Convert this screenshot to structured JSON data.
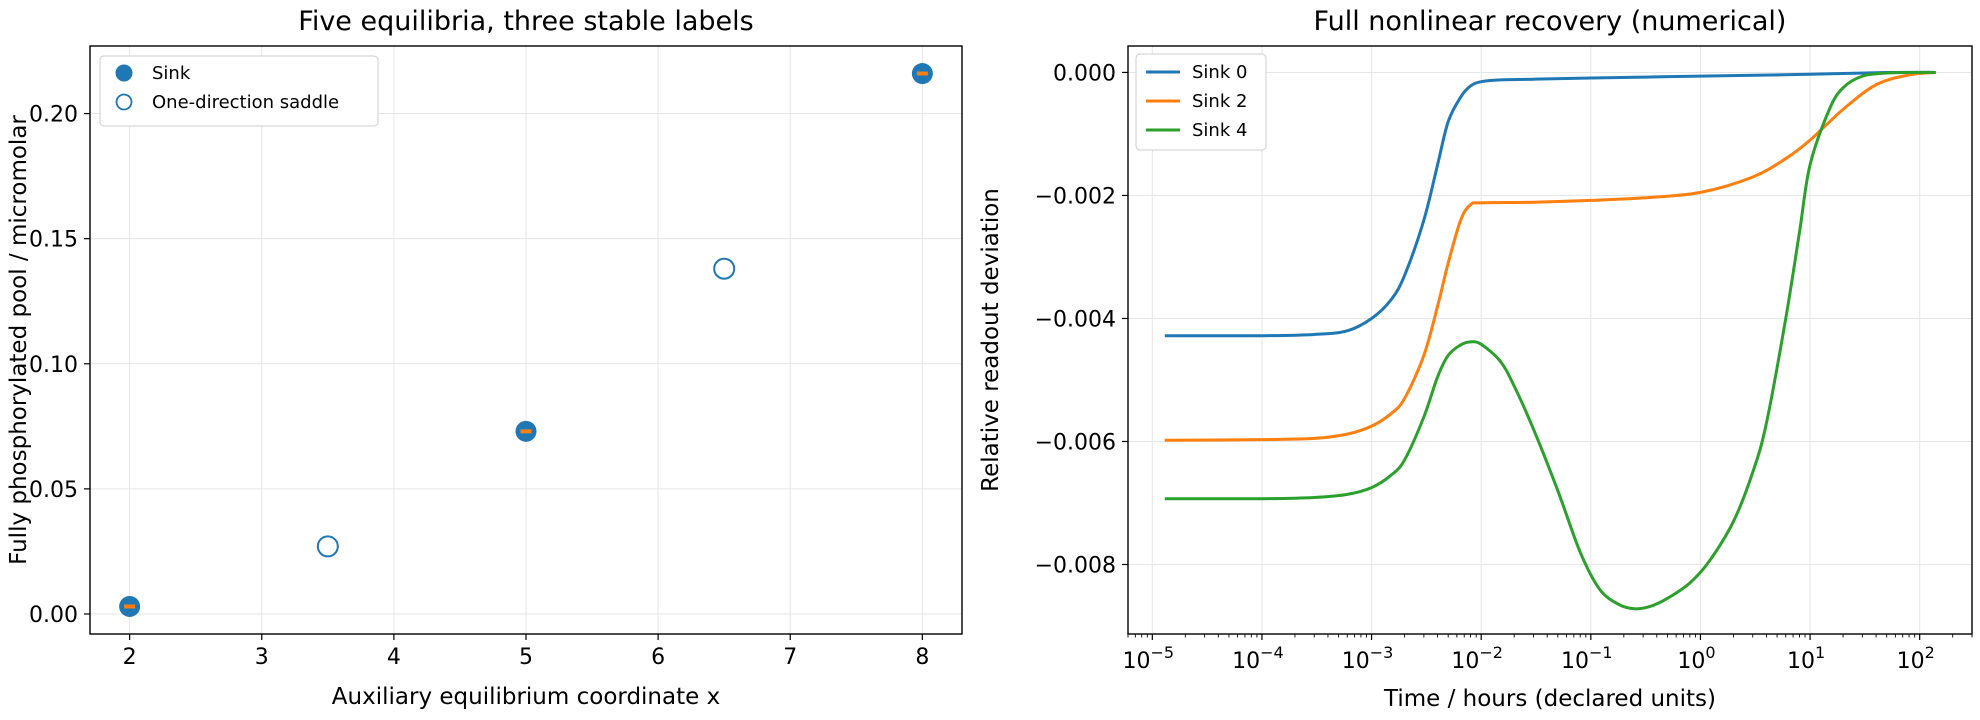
{
  "chart_data": [
    {
      "type": "scatter",
      "title": "Five equilibria, three stable labels",
      "xlabel": "Auxiliary equilibrium coordinate x",
      "ylabel": "Fully phosphorylated pool / micromolar",
      "xlim": [
        1.7,
        8.3
      ],
      "ylim": [
        -0.008,
        0.227
      ],
      "xticks": [
        2,
        3,
        4,
        5,
        6,
        7,
        8
      ],
      "yticks": [
        0.0,
        0.05,
        0.1,
        0.15,
        0.2
      ],
      "xtick_labels": [
        "2",
        "3",
        "4",
        "5",
        "6",
        "7",
        "8"
      ],
      "ytick_labels": [
        "0.00",
        "0.05",
        "0.10",
        "0.15",
        "0.20"
      ],
      "grid": true,
      "legend_position": "top-left",
      "series": [
        {
          "name": "Sink",
          "marker": "filled-circle",
          "color": "#1f77b4",
          "inner_marker_color": "#ff7f0e",
          "points": [
            {
              "x": 2,
              "y": 0.003
            },
            {
              "x": 5,
              "y": 0.073
            },
            {
              "x": 8,
              "y": 0.216
            }
          ]
        },
        {
          "name": "One-direction saddle",
          "marker": "open-circle",
          "color": "#1f77b4",
          "points": [
            {
              "x": 3.5,
              "y": 0.027
            },
            {
              "x": 6.5,
              "y": 0.138
            }
          ]
        }
      ]
    },
    {
      "type": "line",
      "title": "Full nonlinear recovery (numerical)",
      "xlabel": "Time / hours (declared units)",
      "ylabel": "Relative readout deviation",
      "xscale": "log",
      "xlim": [
        6e-06,
        300
      ],
      "ylim": [
        -0.00913,
        0.00043
      ],
      "xticks": [
        1e-05,
        0.0001,
        0.001,
        0.01,
        0.1,
        1,
        10,
        100
      ],
      "xtick_labels": [
        {
          "base": "10",
          "exp": "−5"
        },
        {
          "base": "10",
          "exp": "−4"
        },
        {
          "base": "10",
          "exp": "−3"
        },
        {
          "base": "10",
          "exp": "−2"
        },
        {
          "base": "10",
          "exp": "−1"
        },
        {
          "base": "10",
          "exp": "0"
        },
        {
          "base": "10",
          "exp": "1"
        },
        {
          "base": "10",
          "exp": "2"
        }
      ],
      "yticks": [
        0.0,
        -0.002,
        -0.004,
        -0.006,
        -0.008
      ],
      "ytick_labels": [
        "0.000",
        "−0.002",
        "−0.004",
        "−0.006",
        "−0.008"
      ],
      "grid": true,
      "legend_position": "top-left",
      "series": [
        {
          "name": "Sink 0",
          "color": "#1f77b4",
          "x": [
            1.3e-05,
            0.0001,
            0.0003,
            0.0006,
            0.001,
            0.0015,
            0.002,
            0.003,
            0.004,
            0.005,
            0.0065,
            0.008,
            0.01,
            0.015,
            0.03,
            0.1,
            1,
            10,
            50,
            140
          ],
          "y": [
            -0.00428,
            -0.00428,
            -0.00426,
            -0.0042,
            -0.004,
            -0.0037,
            -0.0033,
            -0.0024,
            -0.0015,
            -0.0008,
            -0.0004,
            -0.00022,
            -0.00015,
            -0.00012,
            -0.00011,
            -9e-05,
            -6e-05,
            -3e-05,
            0.0,
            0.0
          ]
        },
        {
          "name": "Sink 2",
          "color": "#ff7f0e",
          "x": [
            1.3e-05,
            0.0001,
            0.0003,
            0.0006,
            0.001,
            0.0015,
            0.002,
            0.003,
            0.004,
            0.005,
            0.0065,
            0.008,
            0.01,
            0.03,
            0.1,
            0.3,
            1,
            3,
            6,
            10,
            20,
            40,
            80,
            140
          ],
          "y": [
            -0.00598,
            -0.00597,
            -0.00595,
            -0.00588,
            -0.00575,
            -0.00555,
            -0.0053,
            -0.0046,
            -0.0038,
            -0.0031,
            -0.0024,
            -0.00215,
            -0.00212,
            -0.00211,
            -0.00208,
            -0.00204,
            -0.00195,
            -0.0017,
            -0.0014,
            -0.0011,
            -0.0006,
            -0.0002,
            -4e-05,
            0.0
          ]
        },
        {
          "name": "Sink 4",
          "color": "#2ca02c",
          "x": [
            1.3e-05,
            0.0001,
            0.0003,
            0.0006,
            0.001,
            0.0015,
            0.002,
            0.003,
            0.004,
            0.005,
            0.0065,
            0.008,
            0.01,
            0.015,
            0.02,
            0.03,
            0.05,
            0.08,
            0.12,
            0.18,
            0.25,
            0.35,
            0.5,
            0.8,
            1.2,
            2,
            3,
            4,
            6,
            8,
            10,
            15,
            20,
            30,
            50,
            80,
            140
          ],
          "y": [
            -0.00693,
            -0.00693,
            -0.00691,
            -0.00686,
            -0.00675,
            -0.00655,
            -0.0063,
            -0.0056,
            -0.00495,
            -0.0046,
            -0.00443,
            -0.00438,
            -0.00442,
            -0.0047,
            -0.0051,
            -0.0058,
            -0.0068,
            -0.0078,
            -0.0084,
            -0.00865,
            -0.00872,
            -0.00868,
            -0.00855,
            -0.0083,
            -0.00795,
            -0.0073,
            -0.0065,
            -0.0057,
            -0.004,
            -0.0026,
            -0.0015,
            -0.0006,
            -0.00025,
            -6e-05,
            -1e-05,
            0.0,
            0.0
          ]
        }
      ]
    }
  ]
}
